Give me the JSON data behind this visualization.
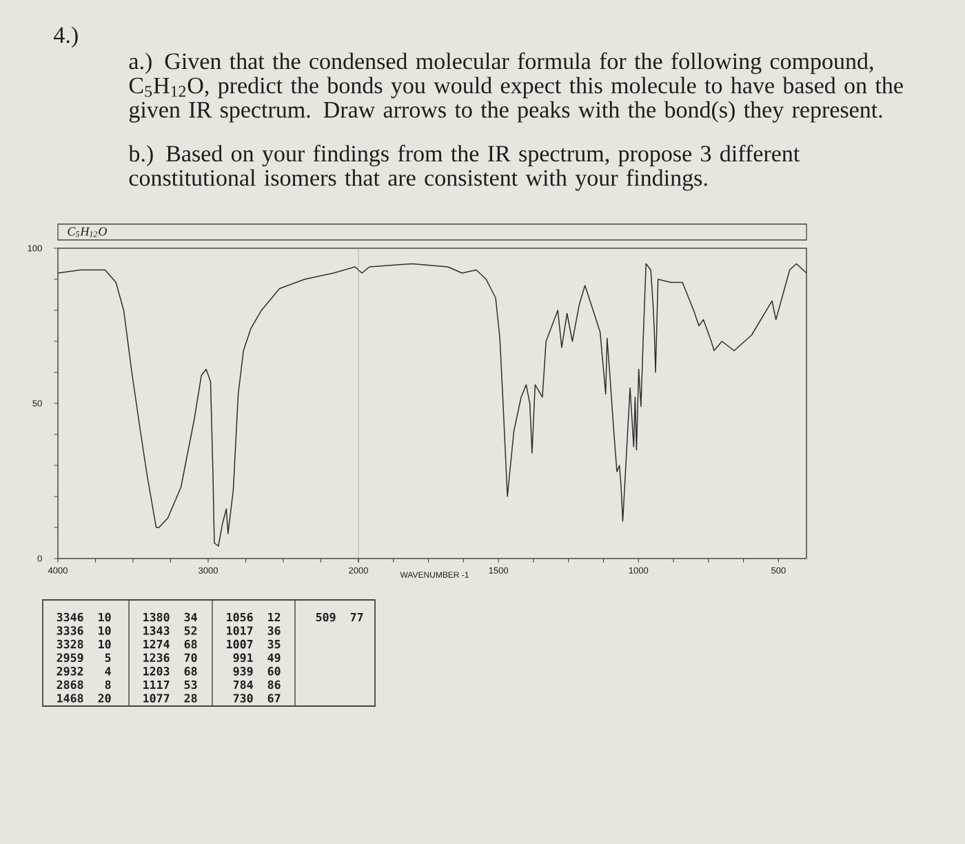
{
  "chart_data": [
    {
      "type": "line",
      "title": "4.)",
      "subtitle": "a.) Given that the condensed molecular formula for the following compound, C$_{5}$H$_{12}$O, predict the bonds you would expect this molecule to have based on the given IR spectrum. Draw arrows to the peaks with the bond(s) they represent.",
      "annotations": [
        "b.) Based on your findings from the IR spectrum, propose 3 different constitutional isomers that are consistent with your findings.",
        "C$_{5}$H$_{12}$O",
        "3346",
        "10",
        "3336",
        "10",
        "3328",
        "10",
        "2959",
        "5",
        "2932",
        "4",
        "2868",
        "8",
        "1468",
        "20",
        "1380",
        "34",
        "1343",
        "52",
        "1274",
        "68",
        "1236",
        "70",
        "1203",
        "68",
        "1117",
        "53",
        "1077",
        "28",
        "1056",
        "12",
        "1017",
        "36",
        "1007",
        "35",
        "991",
        "49",
        "939",
        "60",
        "784",
        "86",
        "730",
        "67",
        "509",
        "77"
      ],
      "x": [
        4000,
        3850,
        3686,
        3614,
        3562,
        3508,
        3457,
        3407,
        3346,
        3336,
        3328,
        3269,
        3181,
        3092,
        3045,
        3013,
        2984,
        2968,
        2959,
        2932,
        2906,
        2879,
        2868,
        2833,
        2800,
        2765,
        2717,
        2645,
        2525,
        2358,
        2166,
        2022,
        2000
      ],
      "values": [
        92,
        93,
        93,
        89,
        80,
        60,
        43,
        27,
        10,
        10,
        10,
        13,
        23,
        45,
        59,
        61,
        57,
        27,
        5,
        4,
        11,
        16,
        8,
        22,
        53,
        67,
        74,
        80,
        87,
        90,
        92,
        94,
        93
      ],
      "color": "#2e2e2e",
      "xlim": [
        4000,
        2000
      ],
      "ylim": [
        0,
        100
      ],
      "xticks": [
        4000,
        {
          "value": 3750,
          "label": null
        },
        {
          "value": 3500,
          "label": null
        },
        {
          "value": 3250,
          "label": null
        },
        3000,
        {
          "value": 2750,
          "label": null
        },
        {
          "value": 2500,
          "label": null
        },
        {
          "value": 2250,
          "label": null
        },
        2000
      ],
      "yticks": [
        0,
        {
          "value": 10,
          "label": null
        },
        {
          "value": 20,
          "label": null
        },
        {
          "value": 30,
          "label": null
        },
        {
          "value": 40,
          "label": null
        },
        50,
        {
          "value": 60,
          "label": null
        },
        {
          "value": 70,
          "label": null
        },
        {
          "value": 80,
          "label": null
        },
        {
          "value": 90,
          "label": null
        },
        100
      ]
    },
    {
      "type": "line",
      "xlabel": "WAVENUMBER -1",
      "x": [
        2000,
        1987,
        1961,
        1809,
        1681,
        1630,
        1579,
        1544,
        1510,
        1495,
        1485,
        1468,
        1445,
        1419,
        1401,
        1388,
        1380,
        1369,
        1343,
        1330,
        1288,
        1274,
        1255,
        1236,
        1211,
        1191,
        1162,
        1137,
        1117,
        1112,
        1102,
        1088,
        1077,
        1068,
        1062,
        1056,
        1030,
        1017,
        1012,
        1007,
        999,
        991,
        983,
        973,
        956,
        948,
        944,
        939,
        930,
        885,
        843,
        803,
        784,
        768,
        740,
        730,
        702,
        658,
        596,
        523,
        509,
        460,
        436,
        400
      ],
      "values": [
        93,
        92,
        94,
        95,
        94,
        92,
        93,
        90,
        84,
        71,
        53,
        20,
        41,
        52,
        56,
        50,
        34,
        56,
        52,
        70,
        80,
        68,
        79,
        70,
        82,
        88,
        80,
        73,
        53,
        71,
        59,
        41,
        28,
        30,
        23,
        12,
        55,
        36,
        52,
        35,
        61,
        49,
        71,
        95,
        93,
        82,
        75,
        60,
        90,
        89,
        89,
        80,
        75,
        77,
        70,
        67,
        70,
        67,
        72,
        83,
        77,
        93,
        95,
        92
      ],
      "color": "#2e2e2e",
      "xlim": [
        2000,
        400
      ],
      "ylim": [
        0,
        100
      ],
      "xticks": [
        {
          "value": 2000,
          "label": null
        },
        {
          "value": 1875,
          "label": null
        },
        {
          "value": 1750,
          "label": null
        },
        {
          "value": 1625,
          "label": null
        },
        1500,
        {
          "value": 1375,
          "label": null
        },
        {
          "value": 1250,
          "label": null
        },
        {
          "value": 1125,
          "label": null
        },
        1000,
        {
          "value": 875,
          "label": null
        },
        {
          "value": 750,
          "label": null
        },
        {
          "value": 625,
          "label": null
        },
        500
      ],
      "tick_labels": "x"
    }
  ]
}
